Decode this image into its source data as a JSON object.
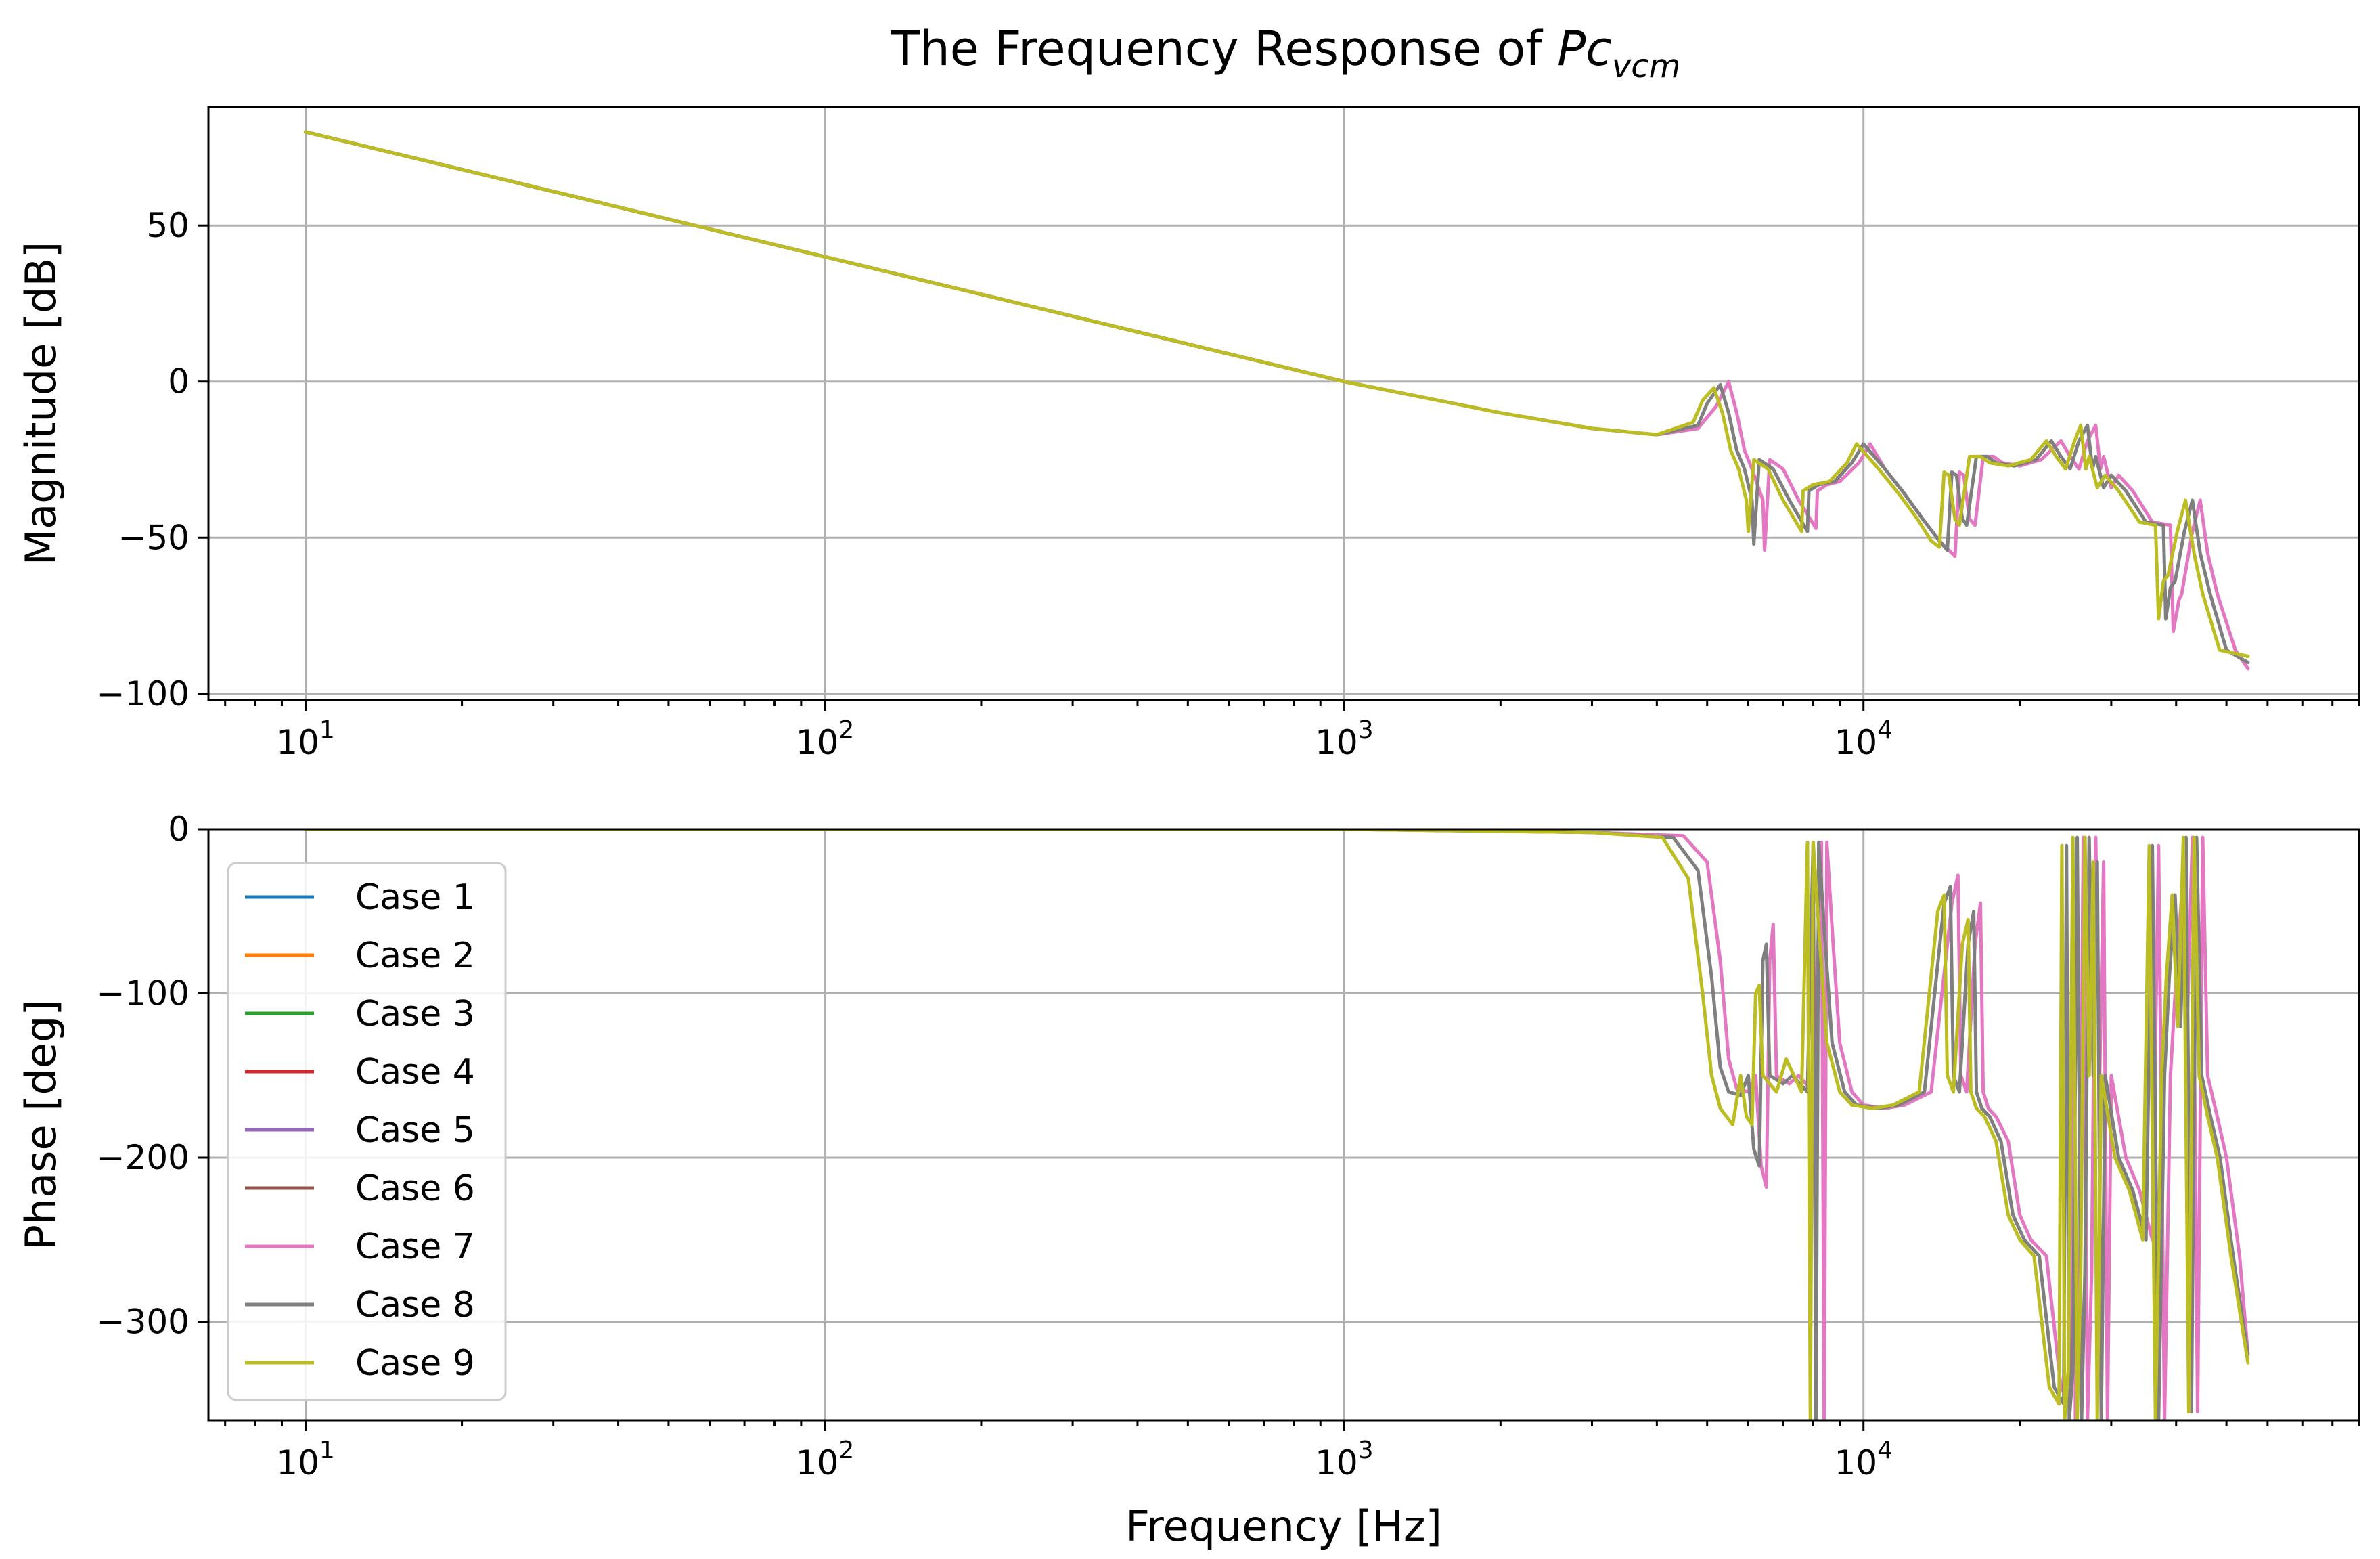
{
  "figure": {
    "title_prefix": "The Frequency Response of ",
    "title_symbol": "Pc",
    "title_subscript": "vcm"
  },
  "chart_data": [
    {
      "type": "line",
      "panel": "magnitude",
      "xlabel": "",
      "ylabel": "Magnitude [dB]",
      "xscale": "log",
      "xlim": [
        6.5,
        90000
      ],
      "ylim": [
        -102,
        88
      ],
      "grid": true,
      "x_major_ticks": [
        10,
        100,
        1000,
        10000
      ],
      "x_tick_labels": [
        {
          "base": "10",
          "exp": "1"
        },
        {
          "base": "10",
          "exp": "2"
        },
        {
          "base": "10",
          "exp": "3"
        },
        {
          "base": "10",
          "exp": "4"
        }
      ],
      "y_ticks": [
        50,
        0,
        -50,
        -100
      ],
      "y_tick_labels": [
        "50",
        "0",
        "−50",
        "−100"
      ],
      "series": [
        {
          "name": "Case 1",
          "color": "#1f77b4",
          "x": [
            10,
            1000
          ],
          "y": [
            80,
            0
          ]
        },
        {
          "name": "Case 2",
          "color": "#ff7f0e",
          "x": [
            10,
            1000
          ],
          "y": [
            80,
            0
          ]
        },
        {
          "name": "Case 3",
          "color": "#2ca02c",
          "x": [
            10,
            1000
          ],
          "y": [
            80,
            0
          ]
        },
        {
          "name": "Case 4",
          "color": "#d62728",
          "x": [
            10,
            1000
          ],
          "y": [
            80,
            0
          ]
        },
        {
          "name": "Case 5",
          "color": "#9467bd",
          "x": [
            10,
            1000
          ],
          "y": [
            80,
            0
          ]
        },
        {
          "name": "Case 6",
          "color": "#8c564b",
          "x": [
            10,
            1000
          ],
          "y": [
            80,
            0
          ]
        },
        {
          "name": "Case 7",
          "color": "#e377c2",
          "x": [
            10,
            100,
            1000,
            2000,
            3000,
            4000,
            4800,
            5200,
            5500,
            5700,
            5900,
            6100,
            6400,
            6450,
            6600,
            7000,
            7500,
            8100,
            8150,
            8500,
            9000,
            9800,
            10300,
            11000,
            12000,
            13000,
            14000,
            15000,
            15300,
            15600,
            16000,
            16400,
            17000,
            17800,
            18500,
            20000,
            22000,
            24000,
            25000,
            26000,
            27000,
            28000,
            28600,
            29000,
            30000,
            31000,
            33000,
            36000,
            39000,
            39500,
            40500,
            41000,
            43000,
            44500,
            46000,
            48000,
            52000,
            55000
          ],
          "y": [
            80,
            40,
            0,
            -10,
            -15,
            -17,
            -15,
            -8,
            0,
            -10,
            -22,
            -28,
            -38,
            -54,
            -25,
            -28,
            -38,
            -47,
            -35,
            -33,
            -32,
            -26,
            -20,
            -28,
            -36,
            -44,
            -51,
            -56,
            -29,
            -30,
            -44,
            -46,
            -24,
            -24,
            -26,
            -27,
            -25,
            -19,
            -24,
            -28,
            -19,
            -14,
            -28,
            -24,
            -34,
            -30,
            -35,
            -45,
            -46,
            -80,
            -70,
            -68,
            -48,
            -38,
            -55,
            -68,
            -86,
            -92
          ]
        },
        {
          "name": "Case 8",
          "color": "#7f7f7f",
          "x": [
            10,
            100,
            1000,
            2000,
            3000,
            4000,
            4800,
            5000,
            5300,
            5500,
            5700,
            5900,
            6100,
            6150,
            6300,
            6700,
            7200,
            7800,
            7850,
            8200,
            8800,
            9500,
            10000,
            11000,
            12000,
            13000,
            14000,
            14500,
            14800,
            15100,
            15500,
            15800,
            16500,
            17300,
            18000,
            19500,
            21500,
            23000,
            24000,
            25000,
            26000,
            27000,
            27600,
            28000,
            29000,
            30000,
            32000,
            35000,
            37800,
            38200,
            39000,
            39800,
            41500,
            43000,
            44500,
            46500,
            50000,
            55000
          ],
          "y": [
            80,
            40,
            0,
            -10,
            -15,
            -17,
            -14,
            -7,
            -1,
            -10,
            -22,
            -28,
            -38,
            -52,
            -25,
            -28,
            -38,
            -48,
            -35,
            -33,
            -32,
            -26,
            -20,
            -28,
            -36,
            -44,
            -51,
            -54,
            -29,
            -30,
            -44,
            -46,
            -24,
            -24,
            -26,
            -27,
            -25,
            -19,
            -24,
            -28,
            -19,
            -14,
            -28,
            -24,
            -34,
            -30,
            -35,
            -45,
            -46,
            -76,
            -66,
            -64,
            -48,
            -38,
            -55,
            -68,
            -86,
            -90
          ]
        },
        {
          "name": "Case 9",
          "color": "#bcbd22",
          "x": [
            10,
            100,
            1000,
            2000,
            3000,
            4000,
            4700,
            4900,
            5150,
            5350,
            5550,
            5750,
            5950,
            6000,
            6150,
            6550,
            7000,
            7600,
            7650,
            8000,
            8600,
            9300,
            9700,
            10700,
            11700,
            12700,
            13500,
            14000,
            14300,
            14600,
            15000,
            15300,
            16000,
            16800,
            17500,
            19000,
            21000,
            22500,
            23500,
            24500,
            25500,
            26200,
            26800,
            27200,
            28200,
            29200,
            31000,
            34000,
            36500,
            37000,
            37800,
            38600,
            40200,
            41700,
            43300,
            45000,
            48500,
            55000
          ],
          "y": [
            80,
            40,
            0,
            -10,
            -15,
            -17,
            -13,
            -6,
            -2,
            -10,
            -22,
            -28,
            -38,
            -48,
            -25,
            -28,
            -38,
            -48,
            -35,
            -33,
            -32,
            -26,
            -20,
            -28,
            -36,
            -44,
            -51,
            -53,
            -29,
            -30,
            -44,
            -46,
            -24,
            -24,
            -26,
            -27,
            -25,
            -19,
            -24,
            -28,
            -19,
            -14,
            -28,
            -24,
            -34,
            -30,
            -35,
            -45,
            -46,
            -76,
            -64,
            -62,
            -48,
            -38,
            -55,
            -68,
            -86,
            -88
          ]
        }
      ]
    },
    {
      "type": "line",
      "panel": "phase",
      "xlabel": "Frequency [Hz]",
      "ylabel": "Phase [deg]",
      "xscale": "log",
      "xlim": [
        6.5,
        90000
      ],
      "ylim": [
        -360,
        0
      ],
      "grid": true,
      "x_major_ticks": [
        10,
        100,
        1000,
        10000
      ],
      "x_tick_labels": [
        {
          "base": "10",
          "exp": "1"
        },
        {
          "base": "10",
          "exp": "2"
        },
        {
          "base": "10",
          "exp": "3"
        },
        {
          "base": "10",
          "exp": "4"
        }
      ],
      "y_ticks": [
        0,
        -100,
        -200,
        -300
      ],
      "y_tick_labels": [
        "0",
        "−100",
        "−200",
        "−300"
      ],
      "legend": {
        "location": "lower-left",
        "entries": [
          "Case 1",
          "Case 2",
          "Case 3",
          "Case 4",
          "Case 5",
          "Case 6",
          "Case 7",
          "Case 8",
          "Case 9"
        ]
      },
      "series": [
        {
          "name": "Case 1",
          "color": "#1f77b4",
          "x": [
            10,
            1000
          ],
          "y": [
            0,
            0
          ]
        },
        {
          "name": "Case 2",
          "color": "#ff7f0e",
          "x": [
            10,
            1000
          ],
          "y": [
            0,
            0
          ]
        },
        {
          "name": "Case 3",
          "color": "#2ca02c",
          "x": [
            10,
            1000
          ],
          "y": [
            0,
            0
          ]
        },
        {
          "name": "Case 4",
          "color": "#d62728",
          "x": [
            10,
            1000
          ],
          "y": [
            0,
            0
          ]
        },
        {
          "name": "Case 5",
          "color": "#9467bd",
          "x": [
            10,
            1000
          ],
          "y": [
            0,
            0
          ]
        },
        {
          "name": "Case 6",
          "color": "#8c564b",
          "x": [
            10,
            1000
          ],
          "y": [
            0,
            0
          ]
        },
        {
          "name": "Case 7",
          "color": "#e377c2",
          "x": [
            10,
            1000,
            3000,
            4500,
            5000,
            5300,
            5500,
            5700,
            6000,
            6200,
            6350,
            6500,
            6600,
            6700,
            6800,
            7200,
            7500,
            8000,
            8300,
            8400,
            8500,
            8700,
            9000,
            9500,
            10000,
            11000,
            12000,
            13500,
            14800,
            15200,
            15400,
            15800,
            16400,
            16800,
            17000,
            17400,
            18000,
            19000,
            20000,
            21000,
            22500,
            24000,
            25000,
            25300,
            25600,
            26000,
            26500,
            27000,
            27500,
            28000,
            28500,
            29000,
            29500,
            30000,
            32000,
            34000,
            36000,
            37000,
            38000,
            39000,
            40000,
            41000,
            42000,
            43000,
            44000,
            45000,
            46000,
            48000,
            50000,
            53000,
            55000
          ],
          "y": [
            0,
            0,
            -2,
            -4,
            -20,
            -80,
            -140,
            -158,
            -160,
            -150,
            -205,
            -218,
            -80,
            -58,
            -150,
            -155,
            -150,
            -160,
            -8,
            -360,
            -8,
            -60,
            -130,
            -160,
            -168,
            -170,
            -168,
            -160,
            -45,
            -28,
            -150,
            -160,
            -70,
            -45,
            -160,
            -170,
            -175,
            -190,
            -235,
            -250,
            -260,
            -340,
            -350,
            -10,
            -360,
            -330,
            -5,
            -360,
            -270,
            -5,
            -150,
            -20,
            -360,
            -150,
            -200,
            -220,
            -250,
            -10,
            -360,
            -150,
            -90,
            -40,
            -120,
            -5,
            -355,
            -5,
            -150,
            -175,
            -200,
            -260,
            -320
          ]
        },
        {
          "name": "Case 8",
          "color": "#7f7f7f",
          "x": [
            10,
            1000,
            3000,
            4300,
            4800,
            5100,
            5300,
            5500,
            5800,
            6000,
            6150,
            6300,
            6400,
            6500,
            6600,
            7000,
            7300,
            7800,
            8000,
            8100,
            8200,
            8400,
            8700,
            9200,
            9700,
            10700,
            11700,
            13100,
            14300,
            14700,
            14900,
            15300,
            15900,
            16300,
            16500,
            16900,
            17500,
            18400,
            19400,
            20400,
            21800,
            23300,
            24300,
            24600,
            24900,
            25300,
            25800,
            26300,
            26700,
            27200,
            27700,
            28200,
            28700,
            29200,
            31000,
            33000,
            35000,
            36000,
            37000,
            38000,
            38800,
            39800,
            40800,
            41800,
            42800,
            43800,
            44800,
            46600,
            48600,
            51500,
            55000
          ],
          "y": [
            0,
            0,
            -2,
            -5,
            -25,
            -90,
            -145,
            -160,
            -162,
            -150,
            -195,
            -205,
            -80,
            -70,
            -150,
            -155,
            -150,
            -160,
            -8,
            -360,
            -8,
            -60,
            -130,
            -160,
            -168,
            -170,
            -168,
            -160,
            -45,
            -35,
            -150,
            -160,
            -70,
            -50,
            -160,
            -170,
            -175,
            -190,
            -235,
            -250,
            -260,
            -340,
            -350,
            -10,
            -360,
            -330,
            -5,
            -360,
            -270,
            -5,
            -150,
            -20,
            -360,
            -150,
            -200,
            -220,
            -250,
            -10,
            -360,
            -150,
            -90,
            -40,
            -120,
            -5,
            -355,
            -5,
            -150,
            -175,
            -200,
            -260,
            -320
          ]
        },
        {
          "name": "Case 9",
          "color": "#bcbd22",
          "x": [
            10,
            1000,
            3000,
            4100,
            4600,
            4900,
            5100,
            5300,
            5600,
            5800,
            5950,
            6100,
            6200,
            6300,
            6400,
            6800,
            7100,
            7600,
            7800,
            7900,
            8000,
            8200,
            8500,
            9000,
            9500,
            10400,
            11400,
            12800,
            13900,
            14300,
            14500,
            14900,
            15500,
            15900,
            16100,
            16500,
            17100,
            18000,
            19000,
            20000,
            21300,
            22800,
            23800,
            24100,
            24400,
            24800,
            25300,
            25800,
            26200,
            26700,
            27200,
            27700,
            28200,
            28700,
            30500,
            32500,
            34500,
            35500,
            36500,
            37500,
            38300,
            39300,
            40300,
            41300,
            42300,
            43300,
            44300,
            46000,
            48000,
            51000,
            55000
          ],
          "y": [
            0,
            0,
            -2,
            -5,
            -30,
            -100,
            -150,
            -170,
            -180,
            -150,
            -175,
            -180,
            -100,
            -95,
            -150,
            -160,
            -140,
            -160,
            -8,
            -360,
            -8,
            -60,
            -130,
            -160,
            -168,
            -170,
            -168,
            -160,
            -50,
            -40,
            -150,
            -160,
            -70,
            -55,
            -160,
            -170,
            -175,
            -190,
            -235,
            -250,
            -260,
            -340,
            -350,
            -10,
            -360,
            -330,
            -5,
            -360,
            -270,
            -5,
            -150,
            -20,
            -360,
            -150,
            -200,
            -220,
            -250,
            -10,
            -360,
            -150,
            -90,
            -40,
            -120,
            -5,
            -355,
            -5,
            -150,
            -175,
            -200,
            -260,
            -325
          ]
        }
      ]
    }
  ]
}
